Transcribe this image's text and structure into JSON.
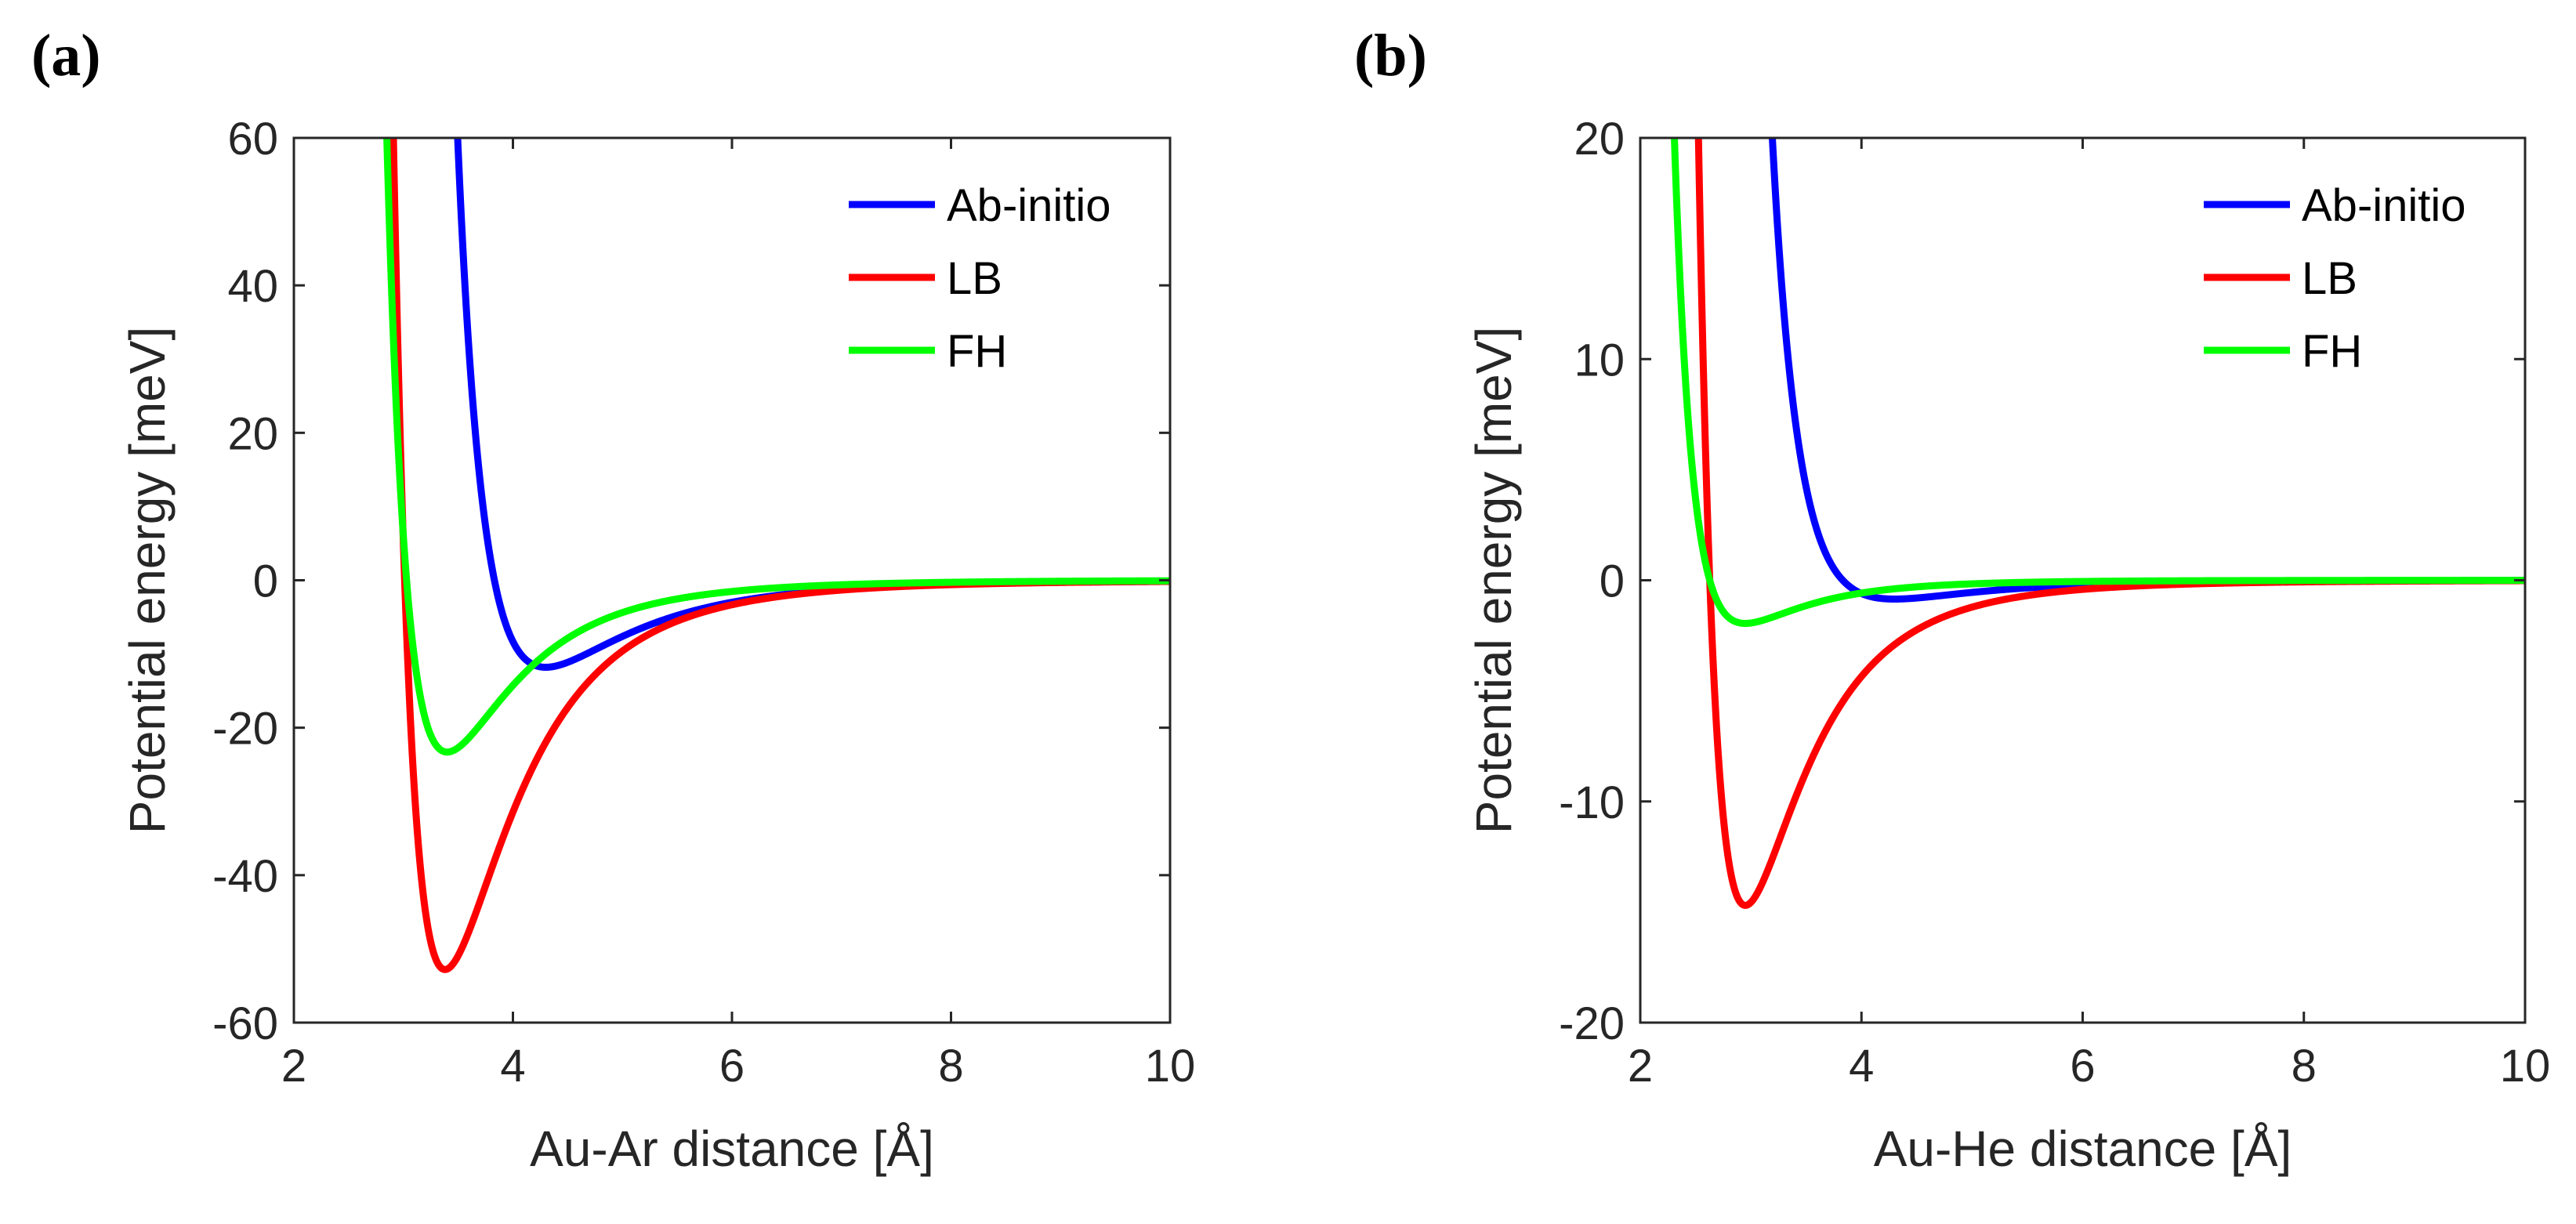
{
  "chart_data": [
    {
      "panel_label": "(a)",
      "type": "line",
      "title": "",
      "xlabel": "Au-Ar distance [Å]",
      "ylabel": "Potential energy [meV]",
      "xlim": [
        2,
        10
      ],
      "ylim": [
        -60,
        60
      ],
      "xticks": [
        "2",
        "4",
        "6",
        "8",
        "10"
      ],
      "yticks": [
        "-60",
        "-40",
        "-20",
        "0",
        "20",
        "40",
        "60"
      ],
      "legend_position": "top-right",
      "series": [
        {
          "name": "Ab-initio",
          "color": "#0000ff",
          "model": "LJ",
          "epsilon": 11.8,
          "r_min": 4.3
        },
        {
          "name": "LB",
          "color": "#ff0000",
          "model": "LJ",
          "epsilon": 52.8,
          "r_min": 3.38
        },
        {
          "name": "FH",
          "color": "#00ff00",
          "model": "LJ",
          "epsilon": 23.3,
          "r_min": 3.4
        }
      ]
    },
    {
      "panel_label": "(b)",
      "type": "line",
      "title": "",
      "xlabel": "Au-He distance [Å]",
      "ylabel": "Potential energy [meV]",
      "xlim": [
        2,
        10
      ],
      "ylim": [
        -20,
        20
      ],
      "xticks": [
        "2",
        "4",
        "6",
        "8",
        "10"
      ],
      "yticks": [
        "-20",
        "-10",
        "0",
        "10",
        "20"
      ],
      "legend_position": "top-right",
      "series": [
        {
          "name": "Ab-initio",
          "color": "#0000ff",
          "model": "LJ",
          "epsilon": 0.85,
          "r_min": 4.3
        },
        {
          "name": "LB",
          "color": "#ff0000",
          "model": "LJ",
          "epsilon": 14.7,
          "r_min": 2.95
        },
        {
          "name": "FH",
          "color": "#00ff00",
          "model": "LJ",
          "epsilon": 1.95,
          "r_min": 2.95
        }
      ]
    }
  ]
}
